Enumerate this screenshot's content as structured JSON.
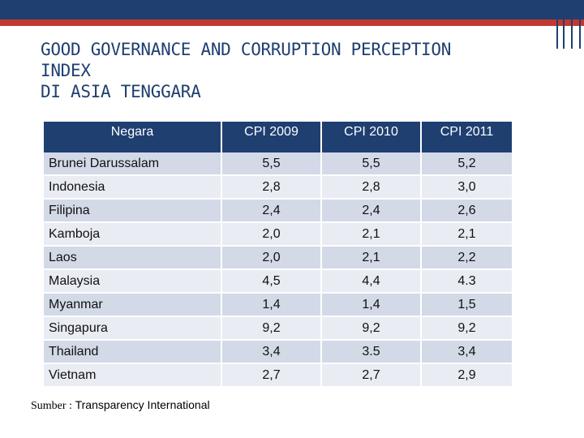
{
  "colors": {
    "header_bg": "#1f3f70",
    "accent_stripe": "#c0392f",
    "row_odd": "#d3d9e7",
    "row_even": "#e9ecf3",
    "title_text": "#1f3f70"
  },
  "title": {
    "line1": "GOOD GOVERNANCE AND CORRUPTION PERCEPTION",
    "line2": "INDEX",
    "line3": "DI ASIA TENGGARA"
  },
  "table": {
    "headers": [
      "Negara",
      "CPI 2009",
      "CPI 2010",
      "CPI 2011"
    ],
    "rows": [
      [
        "Brunei Darussalam",
        "5,5",
        "5,5",
        "5,2"
      ],
      [
        "Indonesia",
        "2,8",
        "2,8",
        "3,0"
      ],
      [
        "Filipina",
        "2,4",
        "2,4",
        "2,6"
      ],
      [
        "Kamboja",
        "2,0",
        "2,1",
        "2,1"
      ],
      [
        "Laos",
        "2,0",
        "2,1",
        "2,2"
      ],
      [
        "Malaysia",
        "4,5",
        "4,4",
        "4.3"
      ],
      [
        "Myanmar",
        "1,4",
        "1,4",
        "1,5"
      ],
      [
        "Singapura",
        "9,2",
        "9,2",
        "9,2"
      ],
      [
        "Thailand",
        "3,4",
        "3.5",
        "3,4"
      ],
      [
        "Vietnam",
        "2,7",
        "2,7",
        "2,9"
      ]
    ]
  },
  "source": {
    "label": "Sumber :",
    "value": "Transparency International"
  }
}
